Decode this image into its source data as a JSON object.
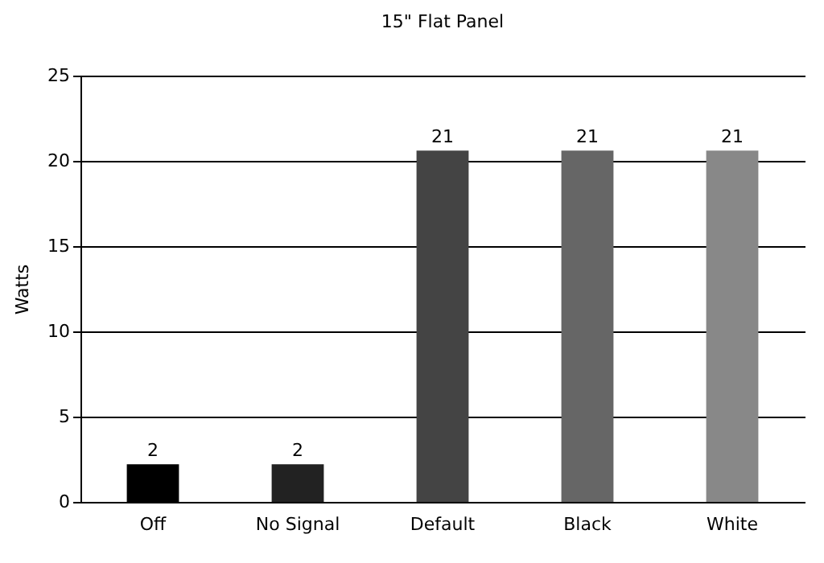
{
  "chart_data": {
    "type": "bar",
    "title": "15\" Flat Panel",
    "ylabel": "Watts",
    "categories": [
      "Off",
      "No Signal",
      "Default",
      "Black",
      "White"
    ],
    "values": [
      2.2,
      2.2,
      20.6,
      20.6,
      20.6
    ],
    "value_labels": [
      "2",
      "2",
      "21",
      "21",
      "21"
    ],
    "colors": [
      "#000000",
      "#222222",
      "#444444",
      "#666666",
      "#888888"
    ],
    "ylim": [
      0,
      25
    ],
    "yticks": [
      0,
      5,
      10,
      15,
      20,
      25
    ],
    "grid": "y"
  }
}
